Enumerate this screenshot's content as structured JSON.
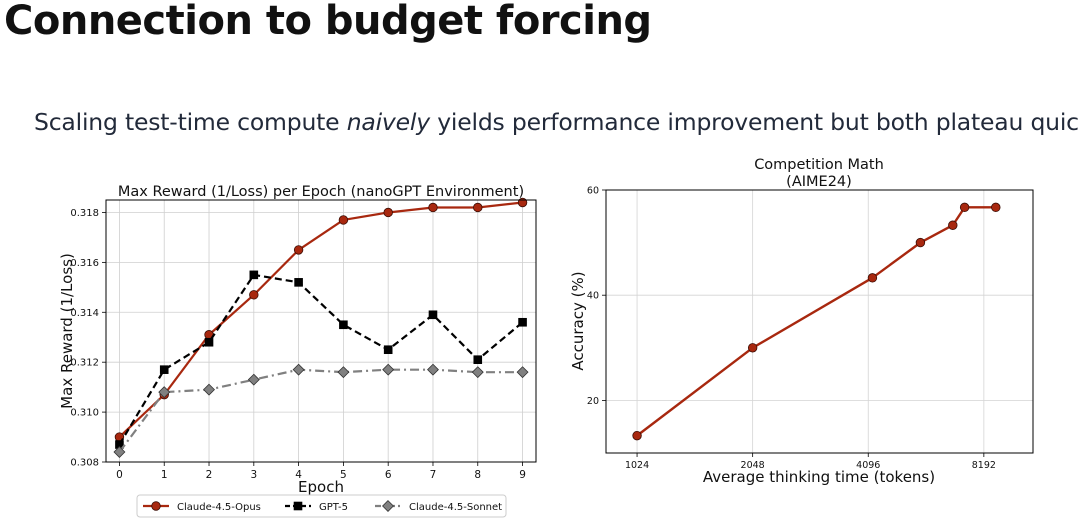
{
  "slide": {
    "title": "Connection to budget forcing",
    "subtitle_pre": "Scaling test-time compute ",
    "subtitle_em": "naively",
    "subtitle_post": " yields performance improvement but both plateau quickly"
  },
  "chart_data": [
    {
      "type": "line",
      "title": "Max Reward (1/Loss) per Epoch (nanoGPT Environment)",
      "xlabel": "Epoch",
      "ylabel": "Max Reward (1/Loss)",
      "x": [
        0,
        1,
        2,
        3,
        4,
        5,
        6,
        7,
        8,
        9
      ],
      "xlim": [
        -0.3,
        9.3
      ],
      "ylim": [
        0.308,
        0.3185
      ],
      "xticks": [
        0,
        1,
        2,
        3,
        4,
        5,
        6,
        7,
        8,
        9
      ],
      "yticks": [
        0.308,
        0.31,
        0.312,
        0.314,
        0.316,
        0.318
      ],
      "ytick_labels": [
        "0.308",
        "0.310",
        "0.312",
        "0.314",
        "0.316",
        "0.318"
      ],
      "grid": true,
      "legend_position": "bottom-outside",
      "series": [
        {
          "name": "Claude-4.5-Opus",
          "values": [
            0.309,
            0.3107,
            0.3131,
            0.3147,
            0.3165,
            0.3177,
            0.318,
            0.3182,
            0.3182,
            0.3184
          ],
          "color": "#a8280f",
          "marker": "circle",
          "dash": "solid"
        },
        {
          "name": "GPT-5",
          "values": [
            0.3087,
            0.3117,
            0.3128,
            0.3155,
            0.3152,
            0.3135,
            0.3125,
            0.3139,
            0.3121,
            0.3136
          ],
          "color": "#000000",
          "marker": "square",
          "dash": "dashed"
        },
        {
          "name": "Claude-4.5-Sonnet",
          "values": [
            0.3084,
            0.3108,
            0.3109,
            0.3113,
            0.3117,
            0.3116,
            0.3117,
            0.3117,
            0.3116,
            0.3116
          ],
          "color": "#808080",
          "marker": "diamond",
          "dash": "dashdot"
        }
      ]
    },
    {
      "type": "line",
      "title": "Competition Math",
      "subtitle": "(AIME24)",
      "xlabel": "Average thinking time (tokens)",
      "ylabel": "Accuracy (%)",
      "x_scale": "log2",
      "xlim": [
        850,
        11000
      ],
      "ylim": [
        10,
        60
      ],
      "xticks": [
        1024,
        2048,
        4096,
        8192
      ],
      "xtick_labels": [
        "1024",
        "2048",
        "4096",
        "8192"
      ],
      "yticks": [
        20,
        40,
        60
      ],
      "ytick_labels": [
        "20",
        "40",
        "60"
      ],
      "grid": true,
      "series": [
        {
          "x": [
            1024,
            2048,
            4200,
            5600,
            6800,
            7300,
            8800
          ],
          "values": [
            13.3,
            30.0,
            43.3,
            50.0,
            53.3,
            56.7,
            56.7
          ],
          "color": "#a8280f",
          "marker": "circle",
          "dash": "solid"
        }
      ]
    }
  ]
}
